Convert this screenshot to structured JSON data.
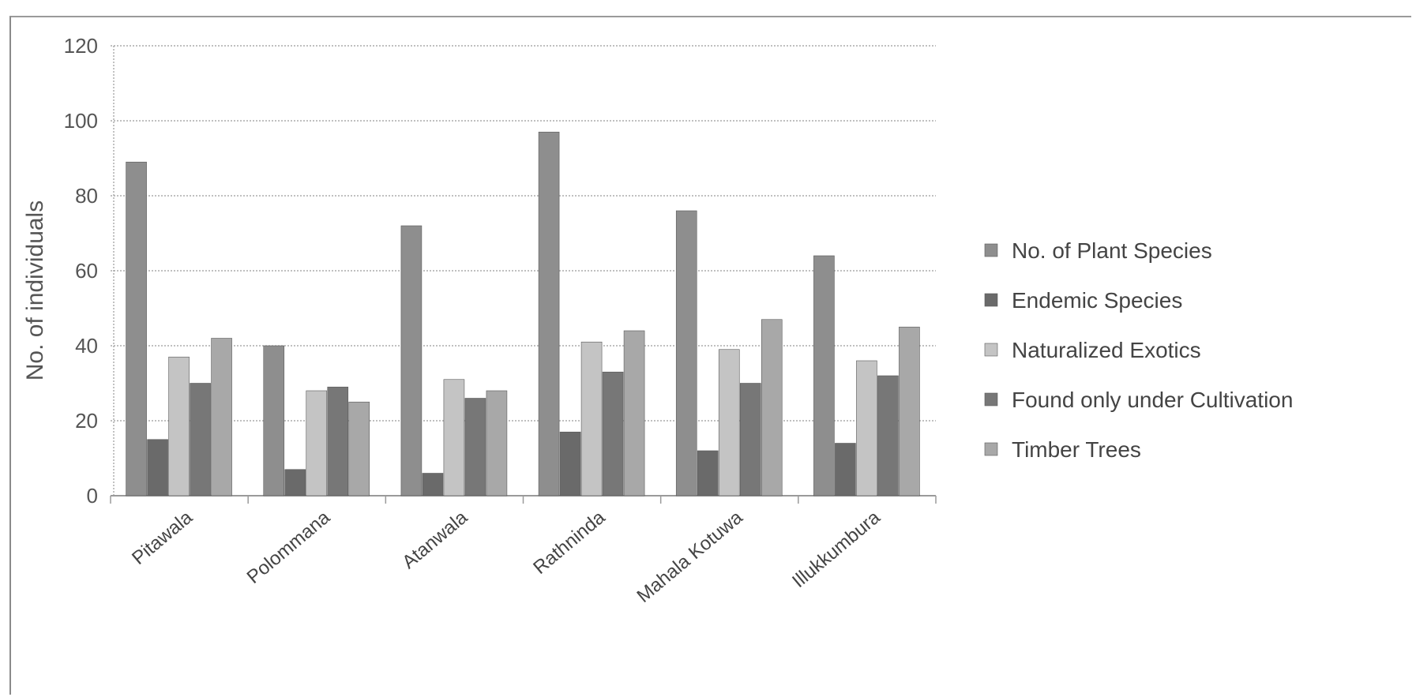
{
  "chart_data": {
    "type": "bar",
    "title": "",
    "xlabel": "",
    "ylabel": "No. of individuals",
    "ylim": [
      0,
      120
    ],
    "yticks": [
      "0",
      "20",
      "40",
      "60",
      "80",
      "100",
      "120"
    ],
    "grid": true,
    "legend_position": "right",
    "categories": [
      "Pitawala",
      "Polommana",
      "Atanwala",
      "Rathninda",
      "Mahala Kotuwa",
      "Illukkumbura"
    ],
    "series": [
      {
        "name": "No. of Plant Species",
        "color": "#8e8e8e",
        "values": [
          89,
          40,
          72,
          97,
          76,
          64
        ]
      },
      {
        "name": "Endemic Species",
        "color": "#6a6a6a",
        "values": [
          15,
          7,
          6,
          17,
          12,
          14
        ]
      },
      {
        "name": "Naturalized Exotics",
        "color": "#c4c4c4",
        "values": [
          37,
          28,
          31,
          41,
          39,
          36
        ]
      },
      {
        "name": "Found only under Cultivation",
        "color": "#777777",
        "values": [
          30,
          29,
          26,
          33,
          30,
          32
        ]
      },
      {
        "name": "Timber Trees",
        "color": "#a8a8a8",
        "values": [
          42,
          25,
          28,
          44,
          47,
          45
        ]
      }
    ]
  }
}
